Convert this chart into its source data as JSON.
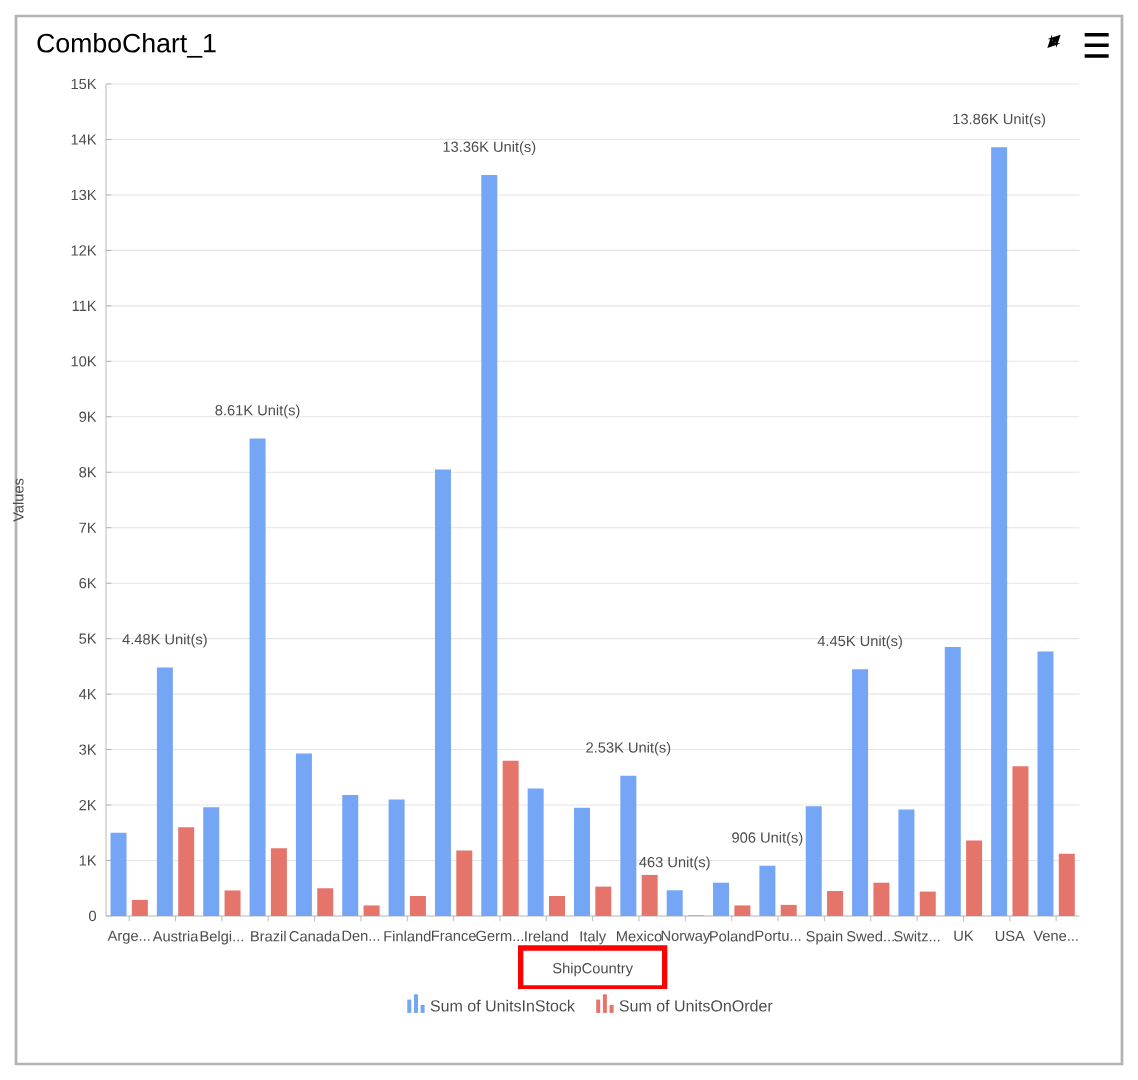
{
  "chart_data": {
    "type": "bar",
    "title": "ComboChart_1",
    "xlabel": "ShipCountry",
    "ylabel": "Values",
    "categories": [
      "Arge...",
      "Austria",
      "Belgi...",
      "Brazil",
      "Canada",
      "Den...",
      "Finland",
      "France",
      "Germ...",
      "Ireland",
      "Italy",
      "Mexico",
      "Norway",
      "Poland",
      "Portu...",
      "Spain",
      "Swed...",
      "Switz...",
      "UK",
      "USA",
      "Vene..."
    ],
    "series": [
      {
        "name": "Sum of UnitsInStock",
        "color": "#75a5f5",
        "values": [
          1500,
          4480,
          1960,
          8610,
          2930,
          2180,
          2100,
          8050,
          13360,
          2300,
          1950,
          2530,
          463,
          600,
          906,
          1980,
          4450,
          1920,
          4850,
          13860,
          4770
        ],
        "value_labels": [
          null,
          "4.48K Unit(s)",
          null,
          "8.61K Unit(s)",
          null,
          null,
          null,
          null,
          "13.36K Unit(s)",
          null,
          null,
          "2.53K Unit(s)",
          "463 Unit(s)",
          null,
          "906 Unit(s)",
          null,
          "4.45K Unit(s)",
          null,
          null,
          "13.86K Unit(s)",
          null
        ]
      },
      {
        "name": "Sum of UnitsOnOrder",
        "color": "#e5756a",
        "values": [
          290,
          1600,
          460,
          1220,
          500,
          190,
          360,
          1180,
          2800,
          360,
          530,
          740,
          10,
          190,
          200,
          450,
          600,
          440,
          1360,
          2700,
          1120
        ]
      }
    ],
    "ylim": [
      0,
      15000
    ],
    "yticks": [
      0,
      {
        "value": 1000,
        "label": "1K"
      },
      {
        "value": 2000,
        "label": "2K"
      },
      {
        "value": 3000,
        "label": "3K"
      },
      {
        "value": 4000,
        "label": "4K"
      },
      {
        "value": 5000,
        "label": "5K"
      },
      {
        "value": 6000,
        "label": "6K"
      },
      {
        "value": 7000,
        "label": "7K"
      },
      {
        "value": 8000,
        "label": "8K"
      },
      {
        "value": 9000,
        "label": "9K"
      },
      {
        "value": 10000,
        "label": "10K"
      },
      {
        "value": 11000,
        "label": "11K"
      },
      {
        "value": 12000,
        "label": "12K"
      },
      {
        "value": 13000,
        "label": "13K"
      },
      {
        "value": 14000,
        "label": "14K"
      },
      {
        "value": 15000,
        "label": "15K"
      }
    ],
    "grid": "y",
    "legend": "bottom"
  }
}
